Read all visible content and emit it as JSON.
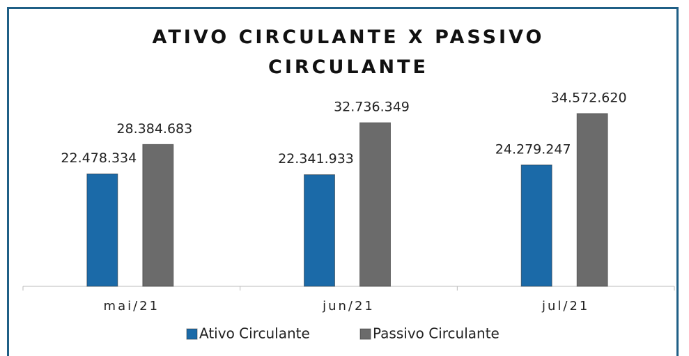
{
  "chart_data": {
    "type": "bar",
    "title": "ATIVO CIRCULANTE X PASSIVO CIRCULANTE",
    "categories": [
      "mai/21",
      "jun/21",
      "jul/21"
    ],
    "series": [
      {
        "name": "Ativo Circulante",
        "color": "#1b6aa8",
        "values": [
          22478334,
          22341933,
          24279247
        ],
        "value_labels": [
          "22.478.334",
          "22.341.933",
          "24.279.247"
        ]
      },
      {
        "name": "Passivo Circulante",
        "color": "#6b6b6b",
        "values": [
          28384683,
          32736349,
          34572620
        ],
        "value_labels": [
          "28.384.683",
          "32.736.349",
          "34.572.620"
        ]
      }
    ],
    "ylim": [
      0,
      40000000
    ],
    "legend": "bottom"
  }
}
